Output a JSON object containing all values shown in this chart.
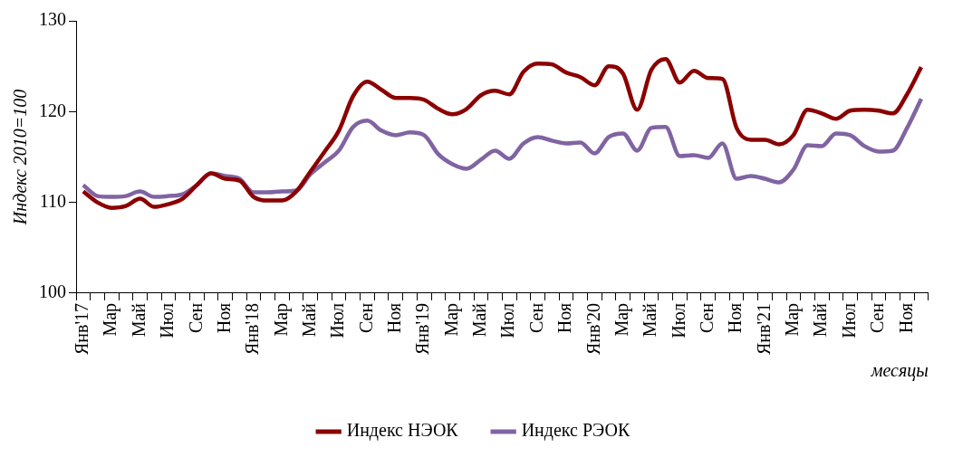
{
  "chart_data": {
    "type": "line",
    "ylabel": "Индекс 2010=100",
    "xlabel": "месяцы",
    "legend": "bottom",
    "marker": "none",
    "ylim": [
      100,
      130
    ],
    "yticks": [
      100,
      110,
      120,
      130
    ],
    "categories": [
      "Янв'17",
      null,
      "Мар",
      null,
      "Май",
      null,
      "Июл",
      null,
      "Сен",
      null,
      "Ноя",
      null,
      "Янв'18",
      null,
      "Мар",
      null,
      "Май",
      null,
      "Июл",
      null,
      "Сен",
      null,
      "Ноя",
      null,
      "Янв'19",
      null,
      "Мар",
      null,
      "Май",
      null,
      "Июл",
      null,
      "Сен",
      null,
      "Ноя",
      null,
      "Янв'20",
      null,
      "Мар",
      null,
      "Май",
      null,
      "Июл",
      null,
      "Сен",
      null,
      "Ноя",
      null,
      "Янв'21",
      null,
      "Мар",
      null,
      "Май",
      null,
      "Июл",
      null,
      "Сен",
      null,
      "Ноя",
      null
    ],
    "series": [
      {
        "name": "Индекс НЭОК",
        "color": "#8b0000",
        "values": [
          111.2,
          110.0,
          109.4,
          109.6,
          110.4,
          109.5,
          109.8,
          110.4,
          111.9,
          113.2,
          112.6,
          112.4,
          110.6,
          110.2,
          110.2,
          111.2,
          113.4,
          115.6,
          117.9,
          121.7,
          123.3,
          122.4,
          121.5,
          121.5,
          121.3,
          120.3,
          119.7,
          120.3,
          121.8,
          122.3,
          121.9,
          124.4,
          125.3,
          125.2,
          124.3,
          123.8,
          122.9,
          125.0,
          124.2,
          120.2,
          124.6,
          125.8,
          123.2,
          124.5,
          123.7,
          123.6,
          118.2,
          116.9,
          116.9,
          116.4,
          117.4,
          120.2,
          119.8,
          119.2,
          120.1,
          120.2,
          120.1,
          119.8,
          121.9,
          124.9
        ]
      },
      {
        "name": "Индекс РЭОК",
        "color": "#8064a2",
        "values": [
          111.9,
          110.7,
          110.6,
          110.7,
          111.2,
          110.6,
          110.7,
          110.9,
          111.9,
          113.2,
          112.9,
          112.6,
          111.1,
          111.1,
          111.2,
          111.3,
          113.1,
          114.4,
          115.7,
          118.3,
          119.0,
          117.9,
          117.4,
          117.7,
          117.4,
          115.3,
          114.2,
          113.7,
          114.7,
          115.7,
          114.8,
          116.5,
          117.2,
          116.8,
          116.5,
          116.6,
          115.4,
          117.2,
          117.6,
          115.7,
          118.2,
          118.3,
          115.1,
          115.2,
          114.9,
          116.5,
          112.6,
          112.9,
          112.6,
          112.2,
          113.6,
          116.3,
          116.2,
          117.6,
          117.4,
          116.2,
          115.6,
          115.7,
          118.2,
          121.4
        ]
      }
    ]
  }
}
